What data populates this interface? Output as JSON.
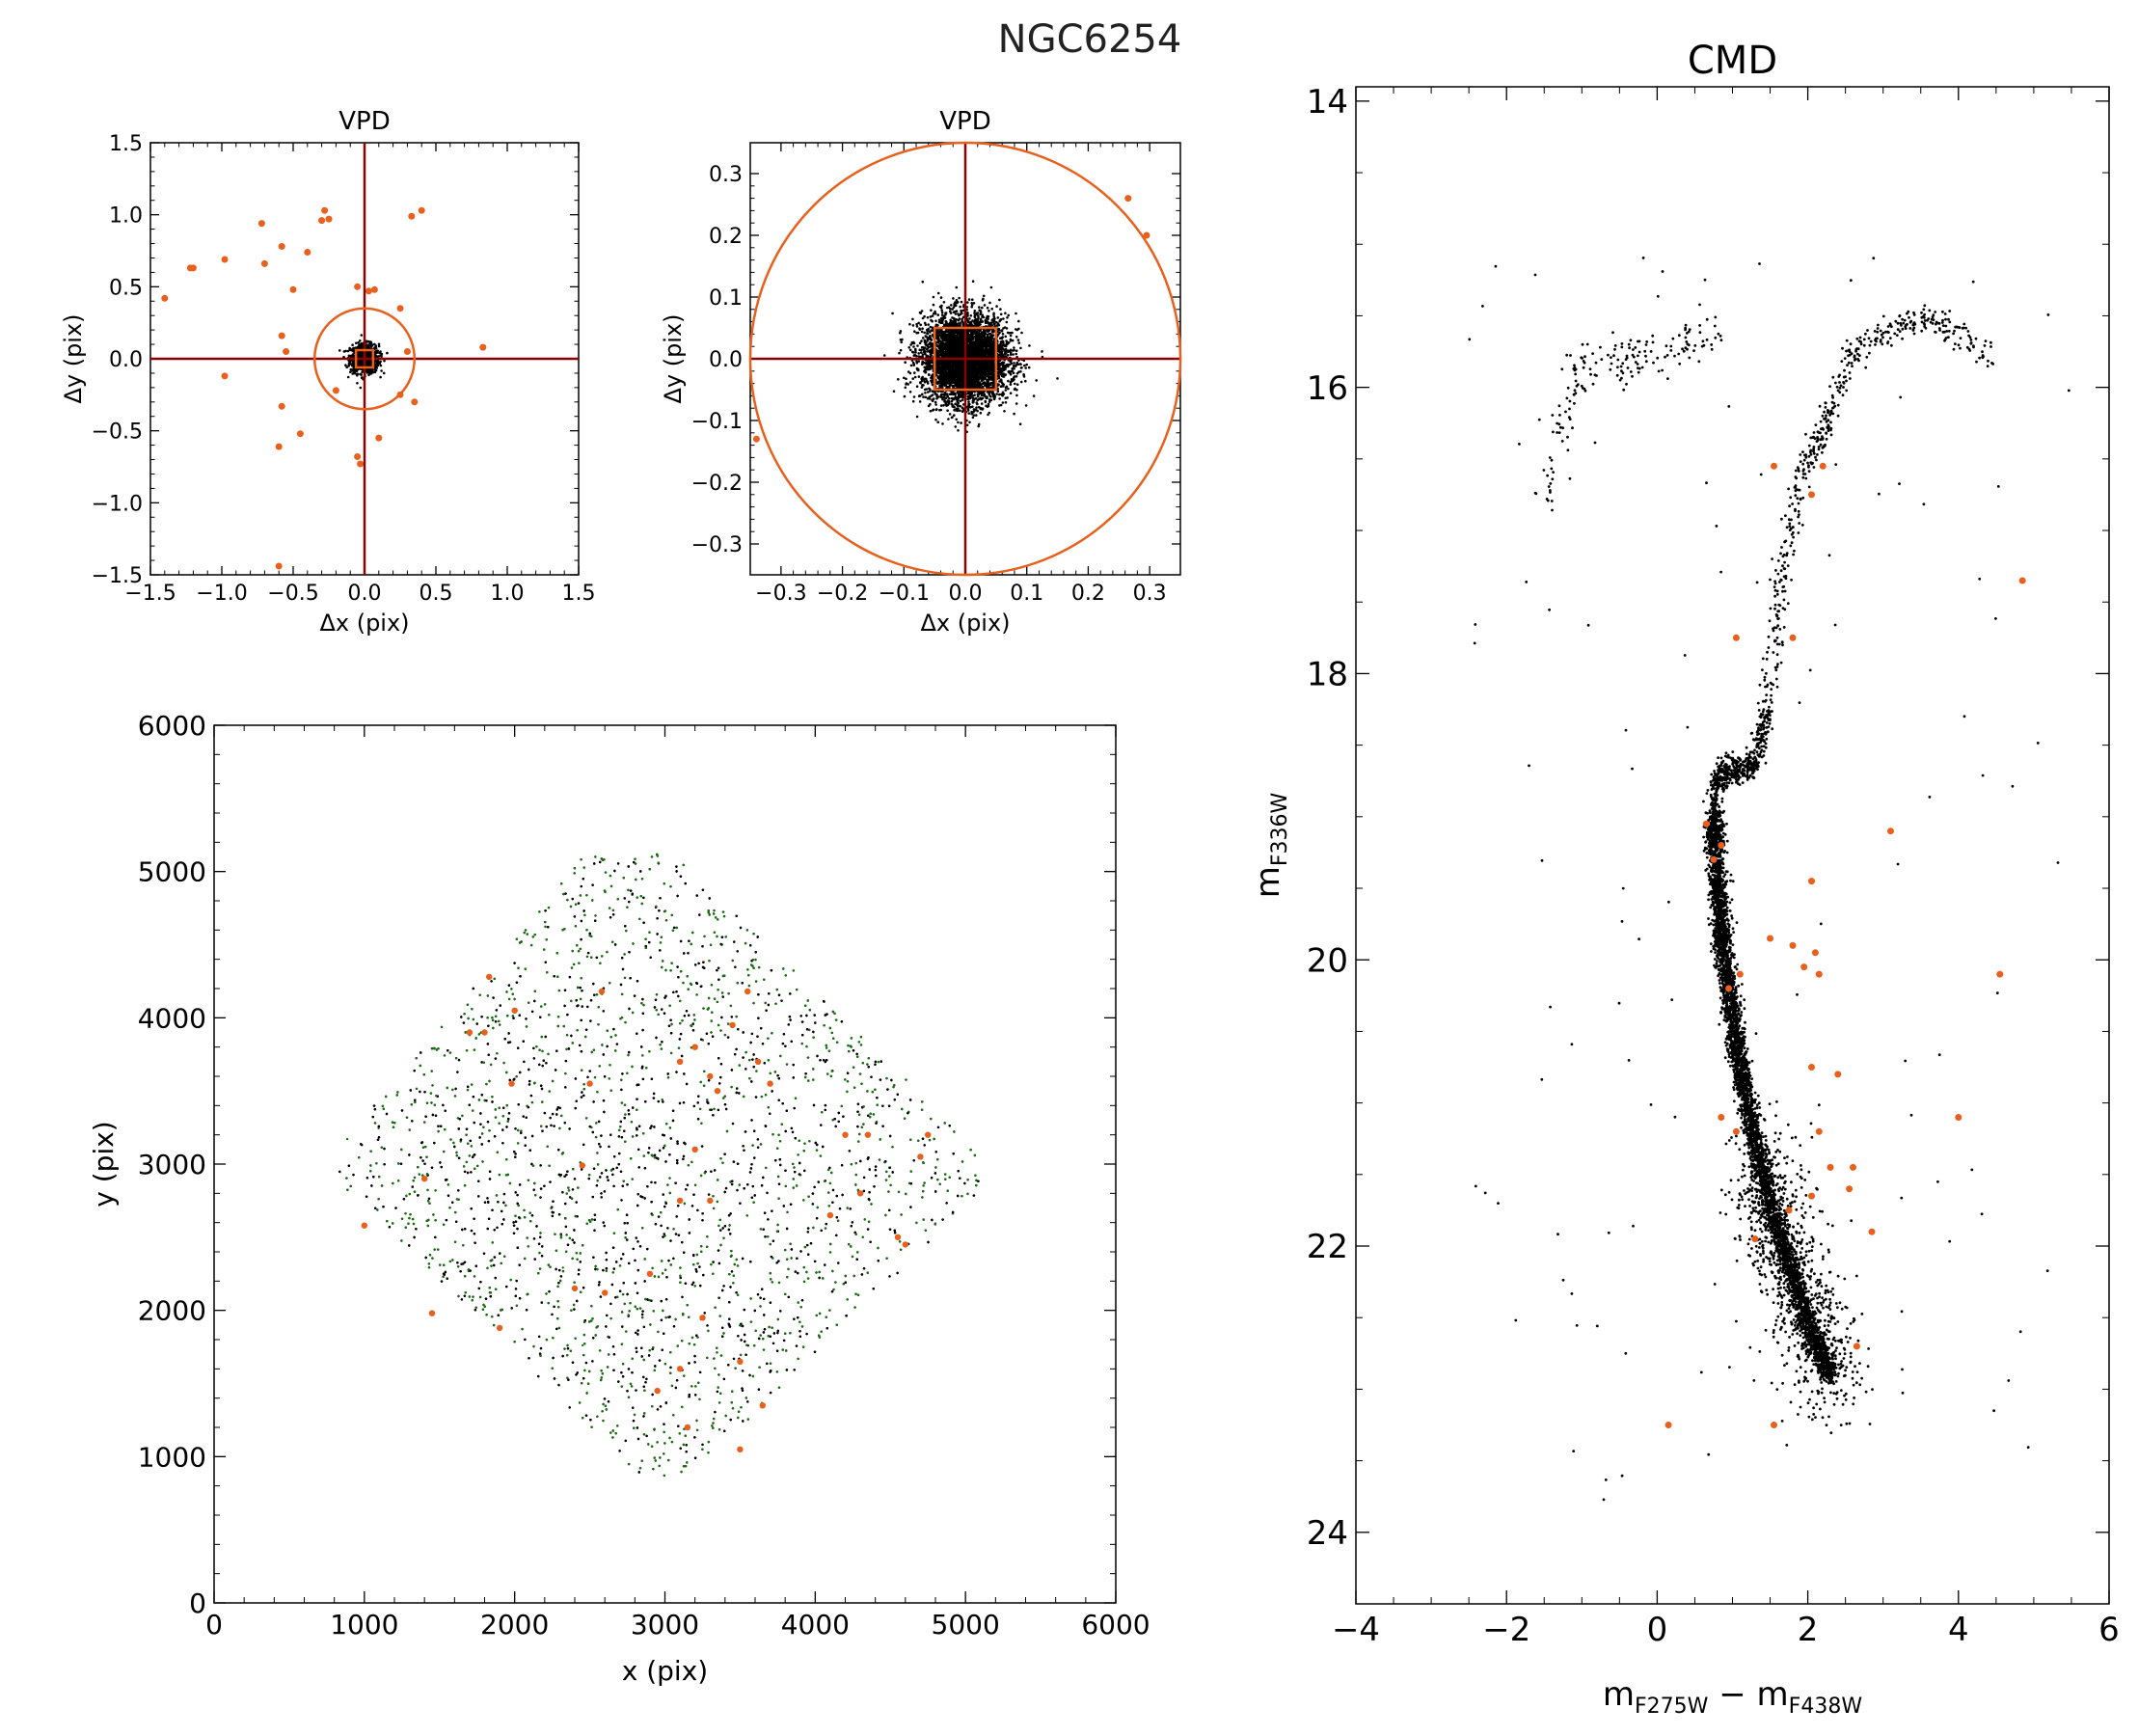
{
  "figure": {
    "cluster": "NGC6254"
  },
  "colors": {
    "member": "#000000",
    "outlier": "#e8601c",
    "frame": "#8b0000",
    "field_green": "#1a6b12"
  },
  "chart_data": [
    {
      "id": "vpd1",
      "type": "scatter",
      "title": "VPD",
      "xlabel": "Δx (pix)",
      "ylabel": "Δy (pix)",
      "xlim": [
        -1.5,
        1.5
      ],
      "ylim": [
        -1.5,
        1.5
      ],
      "xticks": [
        -1.5,
        -1.0,
        -0.5,
        0.0,
        0.5,
        1.0,
        1.5
      ],
      "xtick_labels": [
        "−1.5",
        "−1.0",
        "−0.5",
        "0.0",
        "0.5",
        "1.0",
        "1.5"
      ],
      "yticks": [
        -1.5,
        -1.0,
        -0.5,
        0.0,
        0.5,
        1.0,
        1.5
      ],
      "ytick_labels": [
        "−1.5",
        "−1.0",
        "−0.5",
        "0.0",
        "0.5",
        "1.0",
        "1.5"
      ],
      "circle_radius": 0.35,
      "box_halfwidth": 0.06,
      "members": {
        "center": [
          0.0,
          0.0
        ],
        "sigma": 0.05,
        "count": 900
      },
      "outliers": [
        [
          -1.4,
          0.42
        ],
        [
          -1.22,
          0.63
        ],
        [
          -1.2,
          0.63
        ],
        [
          -0.98,
          0.69
        ],
        [
          -0.72,
          0.94
        ],
        [
          -0.7,
          0.66
        ],
        [
          -0.58,
          0.78
        ],
        [
          -0.4,
          0.74
        ],
        [
          -0.5,
          0.48
        ],
        [
          -0.3,
          0.96
        ],
        [
          -0.28,
          1.03
        ],
        [
          -0.25,
          0.97
        ],
        [
          -0.05,
          0.5
        ],
        [
          0.03,
          0.47
        ],
        [
          0.07,
          0.48
        ],
        [
          0.33,
          0.99
        ],
        [
          0.4,
          1.03
        ],
        [
          -0.58,
          0.16
        ],
        [
          -0.55,
          0.05
        ],
        [
          -0.98,
          -0.12
        ],
        [
          -0.58,
          -0.33
        ],
        [
          -0.6,
          -0.61
        ],
        [
          -0.45,
          -0.52
        ],
        [
          -0.05,
          -0.68
        ],
        [
          -0.03,
          -0.73
        ],
        [
          0.1,
          -0.55
        ],
        [
          0.35,
          -0.3
        ],
        [
          0.25,
          0.35
        ],
        [
          0.3,
          0.05
        ],
        [
          0.83,
          0.08
        ],
        [
          -0.6,
          -1.44
        ],
        [
          0.25,
          -0.25
        ],
        [
          -0.2,
          -0.22
        ]
      ]
    },
    {
      "id": "vpd2",
      "type": "scatter",
      "title": "VPD",
      "xlabel": "Δx (pix)",
      "ylabel": "Δy (pix)",
      "xlim": [
        -0.35,
        0.35
      ],
      "ylim": [
        -0.35,
        0.35
      ],
      "xticks": [
        -0.3,
        -0.2,
        -0.1,
        0.0,
        0.1,
        0.2,
        0.3
      ],
      "xtick_labels": [
        "−0.3",
        "−0.2",
        "−0.1",
        "0.0",
        "0.1",
        "0.2",
        "0.3"
      ],
      "yticks": [
        -0.3,
        -0.2,
        -0.1,
        0.0,
        0.1,
        0.2,
        0.3
      ],
      "ytick_labels": [
        "−0.3",
        "−0.2",
        "−0.1",
        "0.0",
        "0.1",
        "0.2",
        "0.3"
      ],
      "circle_radius": 0.35,
      "box_halfwidth": 0.05,
      "members": {
        "center": [
          0.0,
          0.0
        ],
        "sigma": 0.035,
        "count": 4500
      },
      "outliers": [
        [
          0.265,
          0.26
        ],
        [
          0.295,
          0.2
        ],
        [
          -0.34,
          -0.13
        ]
      ]
    },
    {
      "id": "xy",
      "type": "scatter",
      "title": "",
      "xlabel": "x (pix)",
      "ylabel": "y (pix)",
      "xlim": [
        0,
        6000
      ],
      "ylim": [
        0,
        6000
      ],
      "xticks": [
        0,
        1000,
        2000,
        3000,
        4000,
        5000,
        6000
      ],
      "xtick_labels": [
        "0",
        "1000",
        "2000",
        "3000",
        "4000",
        "5000",
        "6000"
      ],
      "yticks": [
        0,
        1000,
        2000,
        3000,
        4000,
        5000,
        6000
      ],
      "ytick_labels": [
        "0",
        "1000",
        "2000",
        "3000",
        "4000",
        "5000",
        "6000"
      ],
      "footprint": [
        [
          2450,
          5100
        ],
        [
          3050,
          5120
        ],
        [
          5150,
          3050
        ],
        [
          5150,
          2850
        ],
        [
          3150,
          850
        ],
        [
          2850,
          850
        ],
        [
          800,
          2900
        ],
        [
          820,
          3100
        ]
      ],
      "density": {
        "count": 9000,
        "green_fraction": 0.55
      },
      "outliers": [
        [
          1400,
          2900
        ],
        [
          1700,
          3900
        ],
        [
          1830,
          4280
        ],
        [
          2000,
          4050
        ],
        [
          1980,
          3550
        ],
        [
          2580,
          4180
        ],
        [
          2500,
          3550
        ],
        [
          2450,
          2990
        ],
        [
          2600,
          2120
        ],
        [
          2400,
          2150
        ],
        [
          1450,
          1980
        ],
        [
          1900,
          1880
        ],
        [
          3550,
          4180
        ],
        [
          3450,
          3950
        ],
        [
          3620,
          3700
        ],
        [
          3200,
          3800
        ],
        [
          3100,
          3700
        ],
        [
          3300,
          3600
        ],
        [
          3700,
          3550
        ],
        [
          3200,
          3100
        ],
        [
          3350,
          3500
        ],
        [
          3100,
          2750
        ],
        [
          3300,
          2750
        ],
        [
          2900,
          2250
        ],
        [
          3250,
          1950
        ],
        [
          3100,
          1600
        ],
        [
          2950,
          1450
        ],
        [
          3150,
          1200
        ],
        [
          3500,
          1650
        ],
        [
          3500,
          1050
        ],
        [
          3650,
          1350
        ],
        [
          4100,
          2650
        ],
        [
          4200,
          3200
        ],
        [
          4350,
          3200
        ],
        [
          4300,
          2800
        ],
        [
          4550,
          2500
        ],
        [
          4600,
          2450
        ],
        [
          4750,
          3200
        ],
        [
          4700,
          3050
        ],
        [
          1000,
          2580
        ],
        [
          1800,
          3900
        ]
      ]
    },
    {
      "id": "cmd",
      "type": "scatter",
      "title": "CMD",
      "xlabel": "m_F275W − m_F438W",
      "ylabel": "m_F336W",
      "xlim": [
        -4,
        6
      ],
      "ylim": [
        24.5,
        13.9
      ],
      "xticks": [
        -4,
        -2,
        0,
        2,
        4,
        6
      ],
      "xtick_labels": [
        "−4",
        "−2",
        "0",
        "2",
        "4",
        "6"
      ],
      "yticks": [
        14,
        16,
        18,
        20,
        22,
        24
      ],
      "ytick_labels": [
        "14",
        "16",
        "18",
        "20",
        "22",
        "24"
      ],
      "sequences": {
        "main_sequence": [
          [
            0.75,
            19.0
          ],
          [
            0.8,
            19.4
          ],
          [
            0.85,
            19.8
          ],
          [
            0.95,
            20.2
          ],
          [
            1.05,
            20.6
          ],
          [
            1.2,
            21.0
          ],
          [
            1.35,
            21.4
          ],
          [
            1.55,
            21.8
          ],
          [
            1.8,
            22.2
          ],
          [
            2.05,
            22.6
          ],
          [
            2.3,
            22.9
          ]
        ],
        "subgiant_branch": [
          [
            0.75,
            19.0
          ],
          [
            0.8,
            18.75
          ],
          [
            0.95,
            18.65
          ],
          [
            1.15,
            18.7
          ],
          [
            1.3,
            18.6
          ],
          [
            1.45,
            18.3
          ]
        ],
        "red_giant_branch": [
          [
            1.45,
            18.3
          ],
          [
            1.55,
            17.8
          ],
          [
            1.65,
            17.3
          ],
          [
            1.8,
            16.9
          ],
          [
            2.0,
            16.5
          ],
          [
            2.2,
            16.3
          ],
          [
            2.4,
            16.0
          ],
          [
            2.7,
            15.7
          ],
          [
            3.1,
            15.6
          ],
          [
            3.5,
            15.5
          ],
          [
            3.9,
            15.6
          ],
          [
            4.4,
            15.8
          ]
        ],
        "horizontal_branch": [
          [
            -1.5,
            16.8
          ],
          [
            -1.3,
            16.4
          ],
          [
            -1.1,
            16.0
          ],
          [
            -0.9,
            15.8
          ],
          [
            -0.5,
            15.8
          ],
          [
            -0.3,
            15.85
          ],
          [
            0.2,
            15.75
          ],
          [
            0.5,
            15.65
          ],
          [
            0.8,
            15.6
          ]
        ]
      },
      "outliers": [
        [
          1.55,
          16.55
        ],
        [
          2.2,
          16.55
        ],
        [
          2.05,
          16.75
        ],
        [
          4.85,
          17.35
        ],
        [
          1.05,
          17.75
        ],
        [
          1.8,
          17.75
        ],
        [
          3.1,
          19.1
        ],
        [
          2.05,
          19.45
        ],
        [
          0.65,
          19.05
        ],
        [
          0.75,
          19.3
        ],
        [
          0.85,
          19.2
        ],
        [
          1.5,
          19.85
        ],
        [
          1.8,
          19.9
        ],
        [
          2.1,
          19.95
        ],
        [
          1.95,
          20.05
        ],
        [
          2.15,
          20.1
        ],
        [
          4.55,
          20.1
        ],
        [
          0.95,
          20.2
        ],
        [
          1.1,
          20.1
        ],
        [
          2.05,
          20.75
        ],
        [
          2.4,
          20.8
        ],
        [
          4.0,
          21.1
        ],
        [
          0.85,
          21.1
        ],
        [
          1.05,
          21.2
        ],
        [
          2.15,
          21.2
        ],
        [
          2.3,
          21.45
        ],
        [
          2.6,
          21.45
        ],
        [
          2.05,
          21.65
        ],
        [
          2.55,
          21.6
        ],
        [
          1.75,
          21.75
        ],
        [
          2.85,
          21.9
        ],
        [
          1.3,
          21.95
        ],
        [
          0.15,
          23.25
        ],
        [
          1.55,
          23.25
        ],
        [
          2.65,
          22.7
        ]
      ]
    }
  ]
}
